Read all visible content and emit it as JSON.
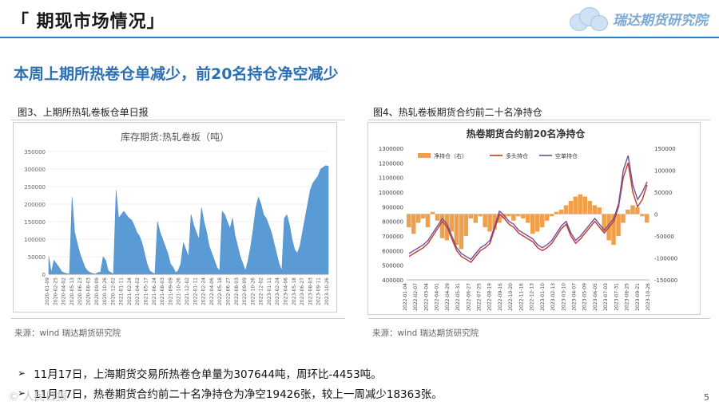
{
  "header": {
    "title": "「 期现市场情况」",
    "logo_text": "瑞达期货研究院"
  },
  "subtitle": "本周上期所热卷仓单减少，前20名持仓净空减少",
  "figures": {
    "left_caption": "图3、上期所热轧卷板仓单日报",
    "right_caption": "图4、热轧卷板期货合约前二十名净持仓",
    "left_source": "来源：wind   瑞达期货研究院",
    "right_source": "来源：wind   瑞达期货研究院"
  },
  "bullets": [
    "11月17日，上海期货交易所热卷仓单量为307644吨，周环比-4453吨。",
    "11月17日，热卷期货合约前二十名净持仓为净空19426张，较上一周减少18363张。"
  ],
  "bullet_glyph": "➢",
  "page_number": "5",
  "watermark": "© 人民日报",
  "colors": {
    "accent": "#2f7fc1",
    "subtitle": "#2a6fb5",
    "area_blue": "#5b9bd5",
    "net_orange": "#f0a04b",
    "long_red": "#c0392b",
    "short_purple": "#6f4fa0"
  },
  "chart_data": [
    {
      "type": "area",
      "title": "库存期货:热轧卷板（吨）",
      "ylim": [
        0,
        350000
      ],
      "yticks": [
        0,
        50000,
        100000,
        150000,
        200000,
        250000,
        300000,
        350000
      ],
      "x_tick_labels": [
        "2020-01-09",
        "2020-02-25",
        "2020-04-02",
        "2020-05-13",
        "2020-06-23",
        "2020-08-03",
        "2020-09-09",
        "2020-10-26",
        "2020-12-02",
        "2021-01-11",
        "2021-02-24",
        "2021-04-02",
        "2021-05-17",
        "2021-06-24",
        "2021-08-03",
        "2021-09-09",
        "2021-10-26",
        "2021-12-02",
        "2022-01-11",
        "2022-02-24",
        "2022-04-06",
        "2022-05-18",
        "2022-06-27",
        "2022-08-03",
        "2022-09-09",
        "2022-10-26",
        "2022-12-02",
        "2023-01-11",
        "2023-02-24",
        "2023-04-06",
        "2023-05-18",
        "2023-06-27",
        "2023-08-03",
        "2023-09-11",
        "2023-10-26"
      ],
      "series": [
        {
          "name": "库存期货:热轧卷板",
          "values": [
            50000,
            5000,
            40000,
            30000,
            20000,
            8000,
            4000,
            2000,
            1000,
            220000,
            120000,
            90000,
            60000,
            40000,
            20000,
            10000,
            5000,
            2000,
            1000,
            5000,
            6000,
            50000,
            40000,
            10000,
            5000,
            1000,
            240000,
            160000,
            170000,
            180000,
            170000,
            160000,
            155000,
            140000,
            120000,
            110000,
            90000,
            60000,
            30000,
            10000,
            5000,
            1000,
            150000,
            120000,
            100000,
            80000,
            60000,
            30000,
            20000,
            5000,
            10000,
            30000,
            90000,
            70000,
            50000,
            170000,
            140000,
            120000,
            100000,
            190000,
            150000,
            120000,
            80000,
            60000,
            40000,
            20000,
            10000,
            180000,
            170000,
            150000,
            130000,
            160000,
            110000,
            80000,
            50000,
            30000,
            10000,
            40000,
            80000,
            130000,
            190000,
            220000,
            200000,
            170000,
            160000,
            140000,
            120000,
            90000,
            60000,
            30000,
            10000,
            160000,
            170000,
            140000,
            100000,
            70000,
            60000,
            80000,
            120000,
            160000,
            200000,
            240000,
            260000,
            270000,
            280000,
            300000,
            305000,
            310000,
            307644
          ]
        }
      ]
    },
    {
      "type": "line",
      "title": "热卷期货合约前20名净持仓",
      "y_left_lim": [
        400000,
        1300000
      ],
      "y_left_ticks": [
        400000,
        500000,
        600000,
        700000,
        800000,
        900000,
        1000000,
        1100000,
        1200000,
        1300000
      ],
      "y_right_lim": [
        -150000,
        150000
      ],
      "y_right_ticks": [
        150000,
        100000,
        50000,
        0,
        -50000,
        -100000,
        -150000
      ],
      "x_tick_labels": [
        "2022-01-04",
        "2022-02-07",
        "2022-03-04",
        "2022-04-01",
        "2022-04-29",
        "2022-05-31",
        "2022-06-27",
        "2022-07-25",
        "2022-08-19",
        "2022-09-16",
        "2022-10-20",
        "2022-11-16",
        "2022-12-13",
        "2023-01-10",
        "2023-02-13",
        "2023-03-10",
        "2023-04-07",
        "2023-05-09",
        "2023-06-05",
        "2023-07-03",
        "2023-07-31",
        "2023-08-25",
        "2023-09-21",
        "2023-10-26"
      ],
      "legend": [
        "净持仓（右）",
        "多头持仓",
        "空单持仓"
      ],
      "series": [
        {
          "name": "净持仓（右）",
          "axis": "right",
          "values": [
            -30000,
            -45000,
            -20000,
            -10000,
            -30000,
            5000,
            -15000,
            -55000,
            -60000,
            -40000,
            -70000,
            -80000,
            -50000,
            -10000,
            -20000,
            -5000,
            -30000,
            -40000,
            -35000,
            -20000,
            -10000,
            -5000,
            -15000,
            -5000,
            -10000,
            -20000,
            -45000,
            -40000,
            -30000,
            -15000,
            -5000,
            5000,
            10000,
            20000,
            30000,
            40000,
            45000,
            40000,
            30000,
            20000,
            15000,
            -40000,
            -60000,
            -70000,
            -50000,
            -20000,
            10000,
            20000,
            15000,
            -5000,
            -19426
          ]
        },
        {
          "name": "多头持仓",
          "axis": "left",
          "values": [
            560000,
            580000,
            600000,
            620000,
            650000,
            700000,
            750000,
            800000,
            760000,
            680000,
            600000,
            560000,
            540000,
            520000,
            560000,
            600000,
            620000,
            650000,
            750000,
            850000,
            820000,
            780000,
            760000,
            720000,
            700000,
            680000,
            660000,
            620000,
            600000,
            620000,
            650000,
            700000,
            750000,
            780000,
            700000,
            650000,
            680000,
            720000,
            760000,
            800000,
            760000,
            720000,
            760000,
            800000,
            900000,
            1100000,
            1200000,
            1000000,
            900000,
            950000,
            1050000
          ]
        },
        {
          "name": "空单持仓",
          "axis": "left",
          "values": [
            580000,
            600000,
            620000,
            640000,
            670000,
            720000,
            770000,
            820000,
            780000,
            700000,
            620000,
            580000,
            560000,
            540000,
            580000,
            620000,
            640000,
            670000,
            770000,
            870000,
            840000,
            800000,
            780000,
            740000,
            720000,
            700000,
            680000,
            640000,
            620000,
            640000,
            670000,
            720000,
            770000,
            800000,
            720000,
            670000,
            700000,
            740000,
            780000,
            820000,
            780000,
            740000,
            780000,
            820000,
            920000,
            1150000,
            1250000,
            1050000,
            950000,
            1000000,
            1070000
          ]
        }
      ]
    }
  ]
}
